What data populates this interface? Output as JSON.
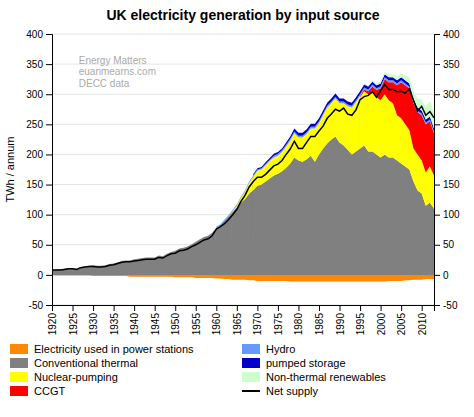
{
  "chart_data": {
    "type": "area",
    "stacked": true,
    "grid": true,
    "legend": "bottom",
    "title": "UK electricity generation by input source",
    "ylabel": "TWh / annum",
    "annotation": "Energy Matters\neuanmearns.com\nDECC data",
    "xlim": [
      1920,
      2013
    ],
    "xticks": [
      1920,
      1925,
      1930,
      1935,
      1940,
      1945,
      1950,
      1955,
      1960,
      1965,
      1970,
      1975,
      1980,
      1985,
      1990,
      1995,
      2000,
      2005,
      2010
    ],
    "ylim": [
      -50,
      400
    ],
    "yticks": [
      -50,
      0,
      50,
      100,
      150,
      200,
      250,
      300,
      350,
      400
    ],
    "y2lim": [
      -50,
      400
    ],
    "y2ticks": [
      -50,
      0,
      50,
      100,
      150,
      200,
      250,
      300,
      350,
      400
    ],
    "x": [
      1920,
      1921,
      1922,
      1923,
      1924,
      1925,
      1926,
      1927,
      1928,
      1929,
      1930,
      1931,
      1932,
      1933,
      1934,
      1935,
      1936,
      1937,
      1938,
      1939,
      1940,
      1941,
      1942,
      1943,
      1944,
      1945,
      1946,
      1947,
      1948,
      1949,
      1950,
      1951,
      1952,
      1953,
      1954,
      1955,
      1956,
      1957,
      1958,
      1959,
      1960,
      1961,
      1962,
      1963,
      1964,
      1965,
      1966,
      1967,
      1968,
      1969,
      1970,
      1971,
      1972,
      1973,
      1974,
      1975,
      1976,
      1977,
      1978,
      1979,
      1980,
      1981,
      1982,
      1983,
      1984,
      1985,
      1986,
      1987,
      1988,
      1989,
      1990,
      1991,
      1992,
      1993,
      1994,
      1995,
      1996,
      1997,
      1998,
      1999,
      2000,
      2001,
      2002,
      2003,
      2004,
      2005,
      2006,
      2007,
      2008,
      2009,
      2010,
      2011,
      2012,
      2013
    ],
    "series": [
      {
        "name": "Electricity used in power stations",
        "color": "#ff8800",
        "values": [
          0,
          -1,
          -1,
          -1,
          -1,
          -1,
          -1,
          -1,
          -1,
          -1,
          -2,
          -2,
          -2,
          -2,
          -2,
          -2,
          -2,
          -2,
          -2,
          -3,
          -3,
          -3,
          -3,
          -3,
          -3,
          -3,
          -3,
          -3,
          -3,
          -3,
          -4,
          -4,
          -4,
          -4,
          -4,
          -5,
          -5,
          -5,
          -5,
          -5,
          -6,
          -6,
          -7,
          -7,
          -8,
          -8,
          -8,
          -8,
          -9,
          -9,
          -10,
          -10,
          -10,
          -10,
          -10,
          -10,
          -10,
          -10,
          -11,
          -11,
          -11,
          -11,
          -11,
          -11,
          -11,
          -11,
          -11,
          -11,
          -11,
          -11,
          -11,
          -11,
          -11,
          -11,
          -11,
          -11,
          -11,
          -11,
          -11,
          -11,
          -11,
          -11,
          -10,
          -10,
          -10,
          -10,
          -9,
          -9,
          -8,
          -8,
          -8,
          -7,
          -7,
          -7
        ]
      },
      {
        "name": "Conventional thermal",
        "color": "#808080",
        "values": [
          8,
          9,
          9,
          10,
          11,
          11,
          10,
          13,
          14,
          15,
          16,
          15,
          15,
          16,
          18,
          19,
          21,
          23,
          24,
          24,
          26,
          27,
          28,
          29,
          29,
          29,
          32,
          31,
          35,
          38,
          40,
          44,
          45,
          47,
          51,
          55,
          59,
          63,
          65,
          70,
          78,
          82,
          90,
          97,
          105,
          112,
          120,
          126,
          135,
          141,
          148,
          150,
          155,
          160,
          165,
          168,
          172,
          178,
          185,
          195,
          190,
          188,
          192,
          198,
          188,
          200,
          210,
          218,
          225,
          230,
          220,
          215,
          208,
          200,
          205,
          210,
          215,
          205,
          205,
          200,
          195,
          200,
          195,
          195,
          190,
          185,
          180,
          175,
          155,
          140,
          135,
          115,
          120,
          110
        ]
      },
      {
        "name": "Nuclear-pumping",
        "color": "#ffff00",
        "values": [
          0,
          0,
          0,
          0,
          0,
          0,
          0,
          0,
          0,
          0,
          0,
          0,
          0,
          0,
          0,
          0,
          0,
          0,
          0,
          0,
          0,
          0,
          0,
          0,
          0,
          0,
          0,
          0,
          0,
          0,
          0,
          0,
          0,
          0,
          0,
          0,
          0,
          0,
          0,
          0,
          0,
          0,
          0,
          0,
          1,
          3,
          8,
          12,
          18,
          22,
          25,
          25,
          27,
          29,
          30,
          30,
          32,
          35,
          38,
          40,
          38,
          40,
          42,
          45,
          55,
          52,
          55,
          60,
          60,
          63,
          65,
          70,
          72,
          78,
          82,
          85,
          90,
          95,
          100,
          95,
          95,
          100,
          95,
          90,
          75,
          75,
          70,
          65,
          55,
          60,
          55,
          55,
          60,
          55
        ]
      },
      {
        "name": "CCGT",
        "color": "#ff0000",
        "values": [
          0,
          0,
          0,
          0,
          0,
          0,
          0,
          0,
          0,
          0,
          0,
          0,
          0,
          0,
          0,
          0,
          0,
          0,
          0,
          0,
          0,
          0,
          0,
          0,
          0,
          0,
          0,
          0,
          0,
          0,
          0,
          0,
          0,
          0,
          0,
          0,
          0,
          0,
          0,
          0,
          0,
          0,
          0,
          0,
          0,
          0,
          0,
          0,
          0,
          0,
          0,
          0,
          0,
          0,
          0,
          0,
          0,
          0,
          0,
          0,
          0,
          0,
          0,
          0,
          0,
          0,
          0,
          0,
          0,
          0,
          0,
          0,
          0,
          0,
          0,
          2,
          3,
          5,
          8,
          12,
          20,
          25,
          30,
          35,
          50,
          60,
          65,
          70,
          75,
          70,
          75,
          80,
          75,
          70
        ]
      },
      {
        "name": "Hydro",
        "color": "#6699ff",
        "values": [
          0,
          0,
          0,
          0,
          0,
          0,
          0,
          0,
          0,
          0,
          0,
          0,
          0,
          0,
          0,
          0,
          0,
          0,
          0,
          0,
          0,
          0,
          0,
          0,
          0,
          0,
          0,
          0,
          0,
          0,
          0,
          0,
          0,
          0,
          0,
          0,
          0,
          0,
          0,
          0,
          2,
          2,
          2,
          2,
          2,
          2,
          2,
          2,
          2,
          2,
          2,
          2,
          2,
          2,
          3,
          3,
          3,
          3,
          3,
          3,
          3,
          3,
          3,
          3,
          3,
          3,
          3,
          3,
          3,
          3,
          3,
          3,
          3,
          3,
          3,
          3,
          3,
          3,
          3,
          3,
          3,
          3,
          3,
          3,
          3,
          3,
          3,
          3,
          3,
          3,
          3,
          3,
          3,
          3
        ]
      },
      {
        "name": "pumped storage",
        "color": "#0000cc",
        "values": [
          0,
          0,
          0,
          0,
          0,
          0,
          0,
          0,
          0,
          0,
          0,
          0,
          0,
          0,
          0,
          0,
          0,
          0,
          0,
          0,
          0,
          0,
          0,
          0,
          0,
          0,
          0,
          0,
          0,
          0,
          0,
          0,
          0,
          0,
          0,
          0,
          0,
          0,
          0,
          0,
          0,
          0,
          0,
          0,
          0,
          0,
          0,
          0,
          0,
          2,
          2,
          2,
          3,
          3,
          3,
          3,
          3,
          4,
          4,
          5,
          5,
          5,
          5,
          5,
          5,
          5,
          5,
          5,
          5,
          5,
          5,
          5,
          5,
          5,
          5,
          5,
          5,
          5,
          5,
          5,
          5,
          5,
          5,
          5,
          5,
          5,
          5,
          5,
          5,
          5,
          5,
          5,
          5,
          5
        ]
      },
      {
        "name": "Non-thermal renewables",
        "color": "#ccffcc",
        "values": [
          0,
          0,
          0,
          0,
          0,
          0,
          0,
          0,
          0,
          0,
          0,
          0,
          0,
          0,
          0,
          0,
          0,
          0,
          0,
          0,
          0,
          0,
          0,
          0,
          0,
          0,
          0,
          0,
          0,
          0,
          0,
          0,
          0,
          0,
          0,
          0,
          0,
          0,
          0,
          0,
          0,
          0,
          0,
          0,
          0,
          0,
          0,
          0,
          0,
          0,
          0,
          0,
          0,
          0,
          0,
          0,
          0,
          0,
          0,
          0,
          0,
          0,
          0,
          0,
          0,
          0,
          0,
          0,
          0,
          0,
          0,
          0,
          0,
          0,
          0,
          0,
          1,
          1,
          2,
          3,
          4,
          4,
          5,
          5,
          6,
          7,
          8,
          10,
          12,
          15,
          18,
          22,
          25,
          28
        ]
      },
      {
        "name": "Net supply",
        "color": "#000000",
        "type": "line",
        "values": [
          8,
          8,
          8,
          9,
          10,
          10,
          9,
          12,
          13,
          14,
          14,
          13,
          13,
          14,
          16,
          17,
          19,
          21,
          22,
          22,
          23,
          24,
          25,
          26,
          26,
          26,
          29,
          28,
          32,
          35,
          36,
          40,
          41,
          43,
          47,
          50,
          54,
          58,
          60,
          65,
          76,
          80,
          85,
          92,
          100,
          109,
          122,
          132,
          146,
          155,
          162,
          162,
          167,
          174,
          181,
          184,
          190,
          200,
          209,
          222,
          210,
          210,
          220,
          230,
          230,
          239,
          247,
          260,
          267,
          275,
          272,
          277,
          267,
          265,
          274,
          291,
          296,
          298,
          304,
          295,
          306,
          316,
          308,
          308,
          304,
          305,
          302,
          309,
          290,
          272,
          280,
          265,
          271,
          261
        ]
      }
    ]
  }
}
